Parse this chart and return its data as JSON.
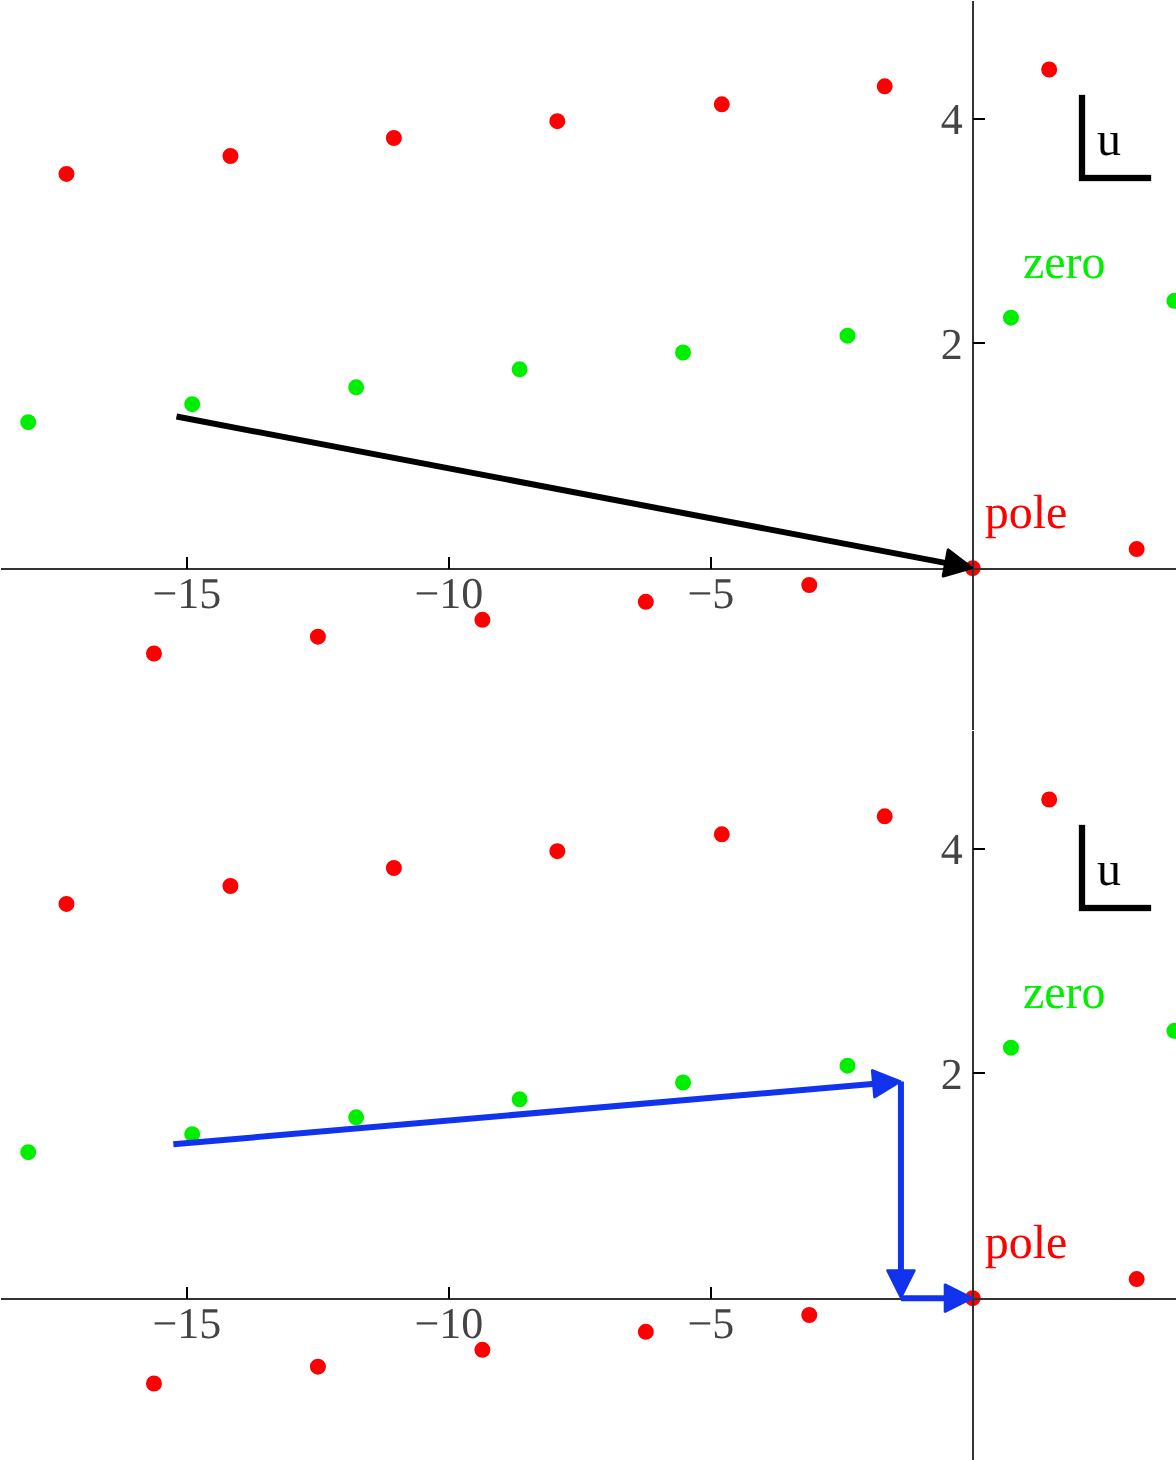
{
  "chart_data": [
    {
      "type": "scatter",
      "xlim": [
        -18.55,
        3.9
      ],
      "ylim": [
        -1.45,
        5.05
      ],
      "xticks": [
        {
          "value": -15,
          "label": "−15"
        },
        {
          "value": -10,
          "label": "−10"
        },
        {
          "value": -5,
          "label": "−5"
        }
      ],
      "yticks": [
        2,
        4
      ],
      "grid": false,
      "marker": "circle",
      "annotations": [
        "u"
      ],
      "series": [
        {
          "name": "pole",
          "color": "#ff0000",
          "x": [
            -17.3,
            -14.17,
            -11.05,
            -7.93,
            -4.79,
            -1.68,
            1.46,
            -15.63,
            -12.5,
            -9.36,
            -6.24,
            -3.12,
            0,
            3.13
          ],
          "values": [
            3.51,
            3.67,
            3.83,
            3.98,
            4.13,
            4.29,
            4.44,
            -0.76,
            -0.61,
            -0.46,
            -0.3,
            -0.15,
            0,
            0.17
          ]
        },
        {
          "name": "zero",
          "color": "#00ee00",
          "x": [
            -18.03,
            -14.9,
            -11.77,
            -8.65,
            -5.53,
            -2.39,
            0.73,
            3.85
          ],
          "values": [
            1.3,
            1.46,
            1.61,
            1.77,
            1.92,
            2.07,
            2.23,
            2.38
          ]
        }
      ]
    },
    {
      "type": "scatter",
      "xlim": [
        -18.55,
        3.9
      ],
      "ylim": [
        -1.45,
        5.05
      ],
      "xticks": [
        {
          "value": -15,
          "label": "−15"
        },
        {
          "value": -10,
          "label": "−10"
        },
        {
          "value": -5,
          "label": "−5"
        }
      ],
      "yticks": [
        2,
        4
      ],
      "grid": false,
      "marker": "circle",
      "annotations": [
        "u"
      ],
      "series": [
        {
          "name": "pole",
          "color": "#ff0000",
          "x": [
            -17.3,
            -14.17,
            -11.05,
            -7.93,
            -4.79,
            -1.68,
            1.46,
            -15.63,
            -12.5,
            -9.36,
            -6.24,
            -3.12,
            0,
            3.13
          ],
          "values": [
            3.51,
            3.67,
            3.83,
            3.98,
            4.13,
            4.29,
            4.44,
            -0.76,
            -0.61,
            -0.46,
            -0.3,
            -0.15,
            0,
            0.17
          ]
        },
        {
          "name": "zero",
          "color": "#00ee00",
          "x": [
            -18.03,
            -14.9,
            -11.77,
            -8.65,
            -5.53,
            -2.39,
            0.73,
            3.85
          ],
          "values": [
            1.3,
            1.46,
            1.61,
            1.77,
            1.92,
            2.07,
            2.23,
            2.38
          ]
        }
      ]
    }
  ]
}
